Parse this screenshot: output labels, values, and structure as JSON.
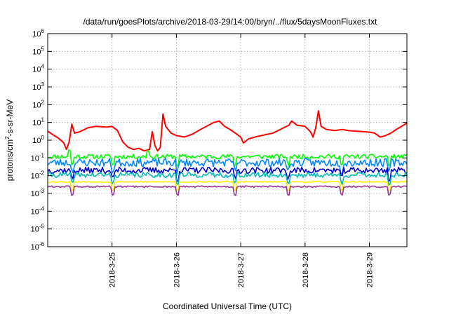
{
  "chart_data": {
    "type": "line",
    "title": "/data/run/goesPlots/archive/2018-03-29/14:00/bryn/../flux/5daysMoonFluxes.txt",
    "xlabel": "Coordinated Universal Time (UTC)",
    "ylabel": "protons/cm²-s-sr-MeV",
    "ylabel_parts": {
      "before": "protons/cm",
      "sup": "2",
      "after": "-s-sr-MeV"
    },
    "y_scale": "log",
    "ylim": [
      1e-06,
      1000000.0
    ],
    "y_ticks": [
      {
        "exp": "-6",
        "value": 1e-06
      },
      {
        "exp": "-5",
        "value": 1e-05
      },
      {
        "exp": "-4",
        "value": 0.0001
      },
      {
        "exp": "-3",
        "value": 0.001
      },
      {
        "exp": "-2",
        "value": 0.01
      },
      {
        "exp": "-1",
        "value": 0.1
      },
      {
        "exp": "0",
        "value": 1
      },
      {
        "exp": "1",
        "value": 10.0
      },
      {
        "exp": "2",
        "value": 100.0
      },
      {
        "exp": "3",
        "value": 1000.0
      },
      {
        "exp": "4",
        "value": 10000.0
      },
      {
        "exp": "5",
        "value": 100000.0
      },
      {
        "exp": "6",
        "value": 1000000.0
      }
    ],
    "y_tick_base": "10",
    "xlim": [
      "2018-03-24T00:00",
      "2018-03-29T14:00"
    ],
    "x_ticks": [
      {
        "label": "2018-3-25",
        "value": "2018-03-25T00:00"
      },
      {
        "label": "2018-3-26",
        "value": "2018-03-26T00:00"
      },
      {
        "label": "2018-3-27",
        "value": "2018-03-27T00:00"
      },
      {
        "label": "2018-3-28",
        "value": "2018-03-28T00:00"
      },
      {
        "label": "2018-3-29",
        "value": "2018-03-29T00:00"
      }
    ],
    "grid": true,
    "series": [
      {
        "color": "#ff0000",
        "points": [
          [
            "2018-03-24T00:00",
            3.2
          ],
          [
            "2018-03-24T02:00",
            2.0
          ],
          [
            "2018-03-24T04:00",
            1.3
          ],
          [
            "2018-03-24T06:00",
            0.7
          ],
          [
            "2018-03-24T07:00",
            0.3
          ],
          [
            "2018-03-24T08:00",
            0.8
          ],
          [
            "2018-03-24T09:00",
            8
          ],
          [
            "2018-03-24T10:00",
            2.5
          ],
          [
            "2018-03-24T12:00",
            3.0
          ],
          [
            "2018-03-24T15:00",
            5
          ],
          [
            "2018-03-24T18:00",
            6
          ],
          [
            "2018-03-24T22:00",
            5.5
          ],
          [
            "2018-03-25T00:00",
            6
          ],
          [
            "2018-03-25T02:00",
            3.5
          ],
          [
            "2018-03-25T04:00",
            0.8
          ],
          [
            "2018-03-25T06:00",
            0.4
          ],
          [
            "2018-03-25T08:00",
            0.3
          ],
          [
            "2018-03-25T10:00",
            0.35
          ],
          [
            "2018-03-25T12:00",
            0.25
          ],
          [
            "2018-03-25T14:00",
            0.3
          ],
          [
            "2018-03-25T15:00",
            3
          ],
          [
            "2018-03-25T16:00",
            0.5
          ],
          [
            "2018-03-25T17:00",
            0.25
          ],
          [
            "2018-03-25T18:00",
            0.4
          ],
          [
            "2018-03-25T19:00",
            30
          ],
          [
            "2018-03-25T20:00",
            6
          ],
          [
            "2018-03-25T22:00",
            2.5
          ],
          [
            "2018-03-26T00:00",
            1.8
          ],
          [
            "2018-03-26T03:00",
            1.5
          ],
          [
            "2018-03-26T06:00",
            2.2
          ],
          [
            "2018-03-26T09:00",
            4
          ],
          [
            "2018-03-26T12:00",
            7
          ],
          [
            "2018-03-26T14:00",
            10
          ],
          [
            "2018-03-26T16:00",
            12
          ],
          [
            "2018-03-26T18:00",
            6
          ],
          [
            "2018-03-26T20:00",
            4
          ],
          [
            "2018-03-26T22:00",
            2.5
          ],
          [
            "2018-03-27T00:00",
            1.5
          ],
          [
            "2018-03-27T01:00",
            0.7
          ],
          [
            "2018-03-27T03:00",
            1.2
          ],
          [
            "2018-03-27T06:00",
            1.6
          ],
          [
            "2018-03-27T09:00",
            2.0
          ],
          [
            "2018-03-27T12:00",
            2.5
          ],
          [
            "2018-03-27T14:00",
            3.5
          ],
          [
            "2018-03-27T16:00",
            5
          ],
          [
            "2018-03-27T18:00",
            7
          ],
          [
            "2018-03-27T19:00",
            12
          ],
          [
            "2018-03-27T21:00",
            7
          ],
          [
            "2018-03-28T00:00",
            6
          ],
          [
            "2018-03-28T02:00",
            3
          ],
          [
            "2018-03-28T03:00",
            1.5
          ],
          [
            "2018-03-28T04:00",
            5
          ],
          [
            "2018-03-28T05:00",
            45
          ],
          [
            "2018-03-28T06:00",
            6
          ],
          [
            "2018-03-28T08:00",
            4
          ],
          [
            "2018-03-28T11:00",
            3.5
          ],
          [
            "2018-03-28T14:00",
            4
          ],
          [
            "2018-03-28T16:00",
            3.5
          ],
          [
            "2018-03-28T19:00",
            3.2
          ],
          [
            "2018-03-28T22:00",
            3.0
          ],
          [
            "2018-03-29T00:00",
            2.8
          ],
          [
            "2018-03-29T02:00",
            2.5
          ],
          [
            "2018-03-29T04:00",
            1.5
          ],
          [
            "2018-03-29T06:00",
            1.8
          ],
          [
            "2018-03-29T08:00",
            2.5
          ],
          [
            "2018-03-29T10:00",
            4
          ],
          [
            "2018-03-29T12:00",
            6
          ],
          [
            "2018-03-29T14:00",
            9
          ]
        ]
      },
      {
        "color": "#00ff00",
        "base": 0.12,
        "noise": 0.25,
        "seed": 11,
        "dips": [
          0.07,
          0.18,
          0.36,
          0.52,
          0.67,
          0.82,
          0.95
        ],
        "spikes": [
          0.06,
          0.28
        ]
      },
      {
        "color": "#0088ff",
        "base": 0.055,
        "noise": 0.45,
        "seed": 23,
        "dips": [
          0.07,
          0.18,
          0.36,
          0.52,
          0.67,
          0.82,
          0.95
        ],
        "spikes": []
      },
      {
        "color": "#0000cc",
        "base": 0.02,
        "noise": 0.35,
        "seed": 37,
        "dips": [
          0.07,
          0.18,
          0.36,
          0.52,
          0.67,
          0.82,
          0.95
        ],
        "spikes": []
      },
      {
        "color": "#00bbbb",
        "base": 0.011,
        "noise": 0.3,
        "seed": 41,
        "dips": [
          0.07,
          0.18,
          0.36,
          0.52,
          0.67,
          0.82,
          0.95
        ],
        "spikes": []
      },
      {
        "color": "#ffee00",
        "base": 0.0045,
        "noise": 0.08,
        "seed": 53,
        "dips": [
          0.07,
          0.18,
          0.36,
          0.52,
          0.67,
          0.82,
          0.95
        ],
        "spikes": []
      },
      {
        "color": "#993399",
        "base": 0.0024,
        "noise": 0.1,
        "seed": 61,
        "dips": [
          0.07,
          0.18,
          0.36,
          0.52,
          0.67,
          0.82,
          0.95
        ],
        "spikes": []
      }
    ]
  }
}
